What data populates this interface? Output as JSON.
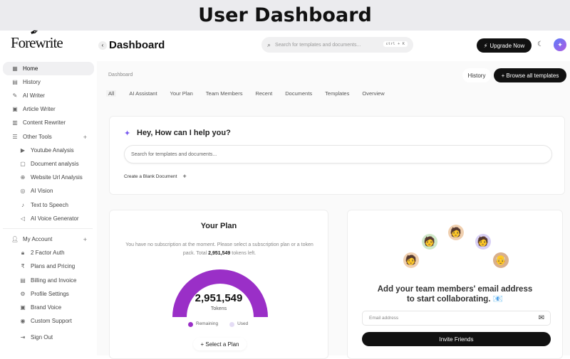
{
  "page_title": "User Dashboard",
  "brand": "Forewrite",
  "sidebar": {
    "items": [
      {
        "label": "Home",
        "icon": "grid-icon",
        "glyph": "▦"
      },
      {
        "label": "History",
        "icon": "archive-icon",
        "glyph": "▤"
      },
      {
        "label": "AI Writer",
        "icon": "pen-icon",
        "glyph": "✎"
      },
      {
        "label": "Article Writer",
        "icon": "article-icon",
        "glyph": "▣"
      },
      {
        "label": "Content Rewriter",
        "icon": "bars-icon",
        "glyph": "▥"
      },
      {
        "label": "Other Tools",
        "icon": "search-list-icon",
        "glyph": "☰"
      }
    ],
    "tools": [
      {
        "label": "Youtube Analysis",
        "glyph": "▶"
      },
      {
        "label": "Document analysis",
        "glyph": "▢"
      },
      {
        "label": "Website Url Analysis",
        "glyph": "⊕"
      },
      {
        "label": "AI Vision",
        "glyph": "◎"
      },
      {
        "label": "Text to Speech",
        "glyph": "♪"
      },
      {
        "label": "AI Voice Generator",
        "glyph": "◁"
      }
    ],
    "account_label": "My Account",
    "account": [
      {
        "label": "2 Factor Auth",
        "glyph": "🔒︎"
      },
      {
        "label": "Plans and Pricing",
        "glyph": "₹"
      },
      {
        "label": "Billing and Invoice",
        "glyph": "▤"
      },
      {
        "label": "Profile Settings",
        "glyph": "⚙"
      },
      {
        "label": "Brand Voice",
        "glyph": "▣"
      },
      {
        "label": "Custom Support",
        "glyph": "◉"
      }
    ],
    "sign_out": "Sign Out"
  },
  "header": {
    "title": "Dashboard",
    "search_placeholder": "Search for templates and documents...",
    "shortcut": "ctrl + K",
    "upgrade": "Upgrade Now"
  },
  "breadcrumb": "Dashboard",
  "history_button": "History",
  "browse_button": "+ Browse all templates",
  "tabs": [
    "All",
    "AI Assistant",
    "Your Plan",
    "Team Members",
    "Recent",
    "Documents",
    "Templates",
    "Overview"
  ],
  "assistant": {
    "title": "Hey, How can I help you?",
    "placeholder": "Search for templates and documents...",
    "blank": "Create a Blank Document"
  },
  "plan": {
    "title": "Your Plan",
    "desc_1": "You have no subscription at the moment. Please select a subscription plan or a token pack. Total ",
    "tokens_bold": "2,951,549",
    "desc_2": " tokens left.",
    "gauge_value": "2,951,549",
    "gauge_label": "Tokens",
    "remaining_fraction": 1.0,
    "legend_remaining": "Remaining",
    "legend_used": "Used",
    "remaining_color": "#9a2fc7",
    "used_color": "#e4dcf5",
    "select": "+ Select a Plan"
  },
  "team": {
    "text_1": "Add your team members' email address",
    "text_2": "to start collaborating. 📧",
    "email_placeholder": "Email address",
    "invite": "Invite Friends"
  }
}
